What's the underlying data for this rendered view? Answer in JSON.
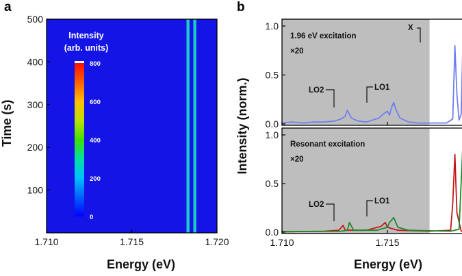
{
  "chart_data": [
    {
      "panel_label": "a",
      "type": "heatmap",
      "xlabel": "Energy (eV)",
      "ylabel": "Time (s)",
      "xlim": [
        1.71,
        1.72
      ],
      "ylim": [
        0,
        500
      ],
      "x_ticks": [
        "1.710",
        "1.715",
        "1.720"
      ],
      "y_ticks": [
        "100",
        "200",
        "300",
        "400",
        "500"
      ],
      "colorbar": {
        "title_line1": "Intensity",
        "title_line2": "(arb. units)",
        "range": [
          0,
          800
        ],
        "ticks": [
          "800",
          "600",
          "400",
          "200",
          "0"
        ],
        "colors": [
          "#0000ff",
          "#0060ff",
          "#00c0ff",
          "#00e0a0",
          "#40e000",
          "#c0e000",
          "#ffc000",
          "#ff6000",
          "#ff1000"
        ]
      },
      "background_color": "#1414e6",
      "emission_lines": [
        {
          "energy": 1.7183,
          "intensity": 300
        },
        {
          "energy": 1.7187,
          "intensity": 340
        }
      ]
    },
    {
      "panel_label": "b",
      "type": "line",
      "xlabel": "Energy (eV)",
      "ylabel": "Intensity (norm.)",
      "xlim": [
        1.71,
        1.72
      ],
      "x_ticks": [
        "1.710",
        "1.715",
        "1.720"
      ],
      "shaded_region": [
        1.71,
        1.717
      ],
      "subplots": [
        {
          "title": "1.96 eV excitation",
          "scale_note": "×20",
          "ylim": [
            0,
            1.05
          ],
          "y_ticks": [
            "0.0",
            "0.5",
            "1.0"
          ],
          "annotations": [
            "X",
            "LO2",
            "LO1"
          ],
          "series": [
            {
              "color": "#6f7ff0",
              "points": [
                [
                  1.71,
                  0.01
                ],
                [
                  1.7105,
                  0.02
                ],
                [
                  1.711,
                  0.01
                ],
                [
                  1.7115,
                  0.02
                ],
                [
                  1.712,
                  0.02
                ],
                [
                  1.7125,
                  0.03
                ],
                [
                  1.7128,
                  0.05
                ],
                [
                  1.713,
                  0.08
                ],
                [
                  1.7131,
                  0.14
                ],
                [
                  1.7133,
                  0.06
                ],
                [
                  1.7136,
                  0.03
                ],
                [
                  1.714,
                  0.02
                ],
                [
                  1.7143,
                  0.04
                ],
                [
                  1.7146,
                  0.06
                ],
                [
                  1.7148,
                  0.1
                ],
                [
                  1.715,
                  0.13
                ],
                [
                  1.7151,
                  0.09
                ],
                [
                  1.7152,
                  0.17
                ],
                [
                  1.7153,
                  0.22
                ],
                [
                  1.7154,
                  0.15
                ],
                [
                  1.7156,
                  0.06
                ],
                [
                  1.716,
                  0.02
                ],
                [
                  1.7165,
                  0.01
                ],
                [
                  1.717,
                  0.01
                ],
                [
                  1.7178,
                  0.01
                ],
                [
                  1.7181,
                  0.05
                ],
                [
                  1.7182,
                  0.8
                ],
                [
                  1.7183,
                  0.3
                ],
                [
                  1.7184,
                  0.04
                ],
                [
                  1.7185,
                  0.1
                ],
                [
                  1.7186,
                  1.0
                ],
                [
                  1.7187,
                  0.35
                ],
                [
                  1.7189,
                  0.03
                ],
                [
                  1.7195,
                  0.01
                ],
                [
                  1.72,
                  0.01
                ]
              ]
            }
          ]
        },
        {
          "title": "Resonant excitation",
          "scale_note": "×20",
          "ylim": [
            0,
            1.05
          ],
          "y_ticks": [
            "0.0",
            "0.5",
            "1.0"
          ],
          "annotations": [
            "LO2",
            "LO1"
          ],
          "series": [
            {
              "color": "#c41818",
              "points": [
                [
                  1.71,
                  0.005
                ],
                [
                  1.712,
                  0.01
                ],
                [
                  1.7127,
                  0.02
                ],
                [
                  1.7129,
                  0.07
                ],
                [
                  1.713,
                  0.02
                ],
                [
                  1.714,
                  0.02
                ],
                [
                  1.7147,
                  0.06
                ],
                [
                  1.7149,
                  0.1
                ],
                [
                  1.715,
                  0.05
                ],
                [
                  1.7155,
                  0.02
                ],
                [
                  1.717,
                  0.01
                ],
                [
                  1.718,
                  0.02
                ],
                [
                  1.7181,
                  0.3
                ],
                [
                  1.7182,
                  0.8
                ],
                [
                  1.7183,
                  0.2
                ],
                [
                  1.7185,
                  0.01
                ],
                [
                  1.72,
                  0.005
                ]
              ]
            },
            {
              "color": "#1a8a2a",
              "points": [
                [
                  1.71,
                  0.005
                ],
                [
                  1.7128,
                  0.01
                ],
                [
                  1.7131,
                  0.02
                ],
                [
                  1.7132,
                  0.1
                ],
                [
                  1.7134,
                  0.02
                ],
                [
                  1.7145,
                  0.02
                ],
                [
                  1.715,
                  0.05
                ],
                [
                  1.7151,
                  0.1
                ],
                [
                  1.7153,
                  0.15
                ],
                [
                  1.7155,
                  0.05
                ],
                [
                  1.716,
                  0.02
                ],
                [
                  1.718,
                  0.01
                ],
                [
                  1.7184,
                  0.03
                ],
                [
                  1.7186,
                  1.0
                ],
                [
                  1.7188,
                  0.3
                ],
                [
                  1.719,
                  0.02
                ],
                [
                  1.72,
                  0.005
                ]
              ]
            }
          ]
        }
      ]
    }
  ]
}
